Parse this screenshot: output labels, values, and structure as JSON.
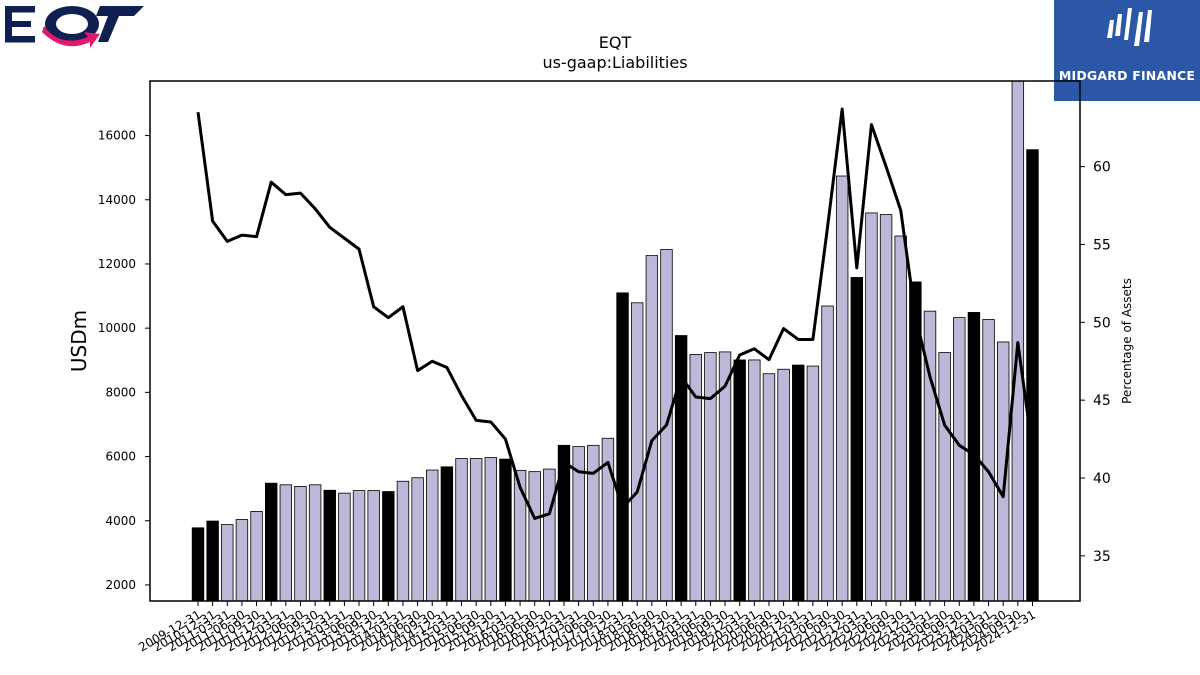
{
  "header": {
    "logo_left": "EQT",
    "logo_right": "MIDGARD FINANCE"
  },
  "colors": {
    "bar_annual": "#000000",
    "bar_quarter": "#bcb8d8",
    "line": "#000000",
    "brand_blue": "#2b57a6",
    "brand_pink": "#e0196d",
    "brand_navy": "#0f1f52"
  },
  "chart_data": {
    "type": "bar",
    "title": "EQT",
    "subtitle": "us-gaap:Liabilities",
    "ylabel": "USDm",
    "ylabel_right": "Percentage of Assets",
    "ylim": [
      1500,
      17700
    ],
    "ylim_right": [
      32.1,
      65.5
    ],
    "yticks": [
      2000,
      4000,
      6000,
      8000,
      10000,
      12000,
      14000,
      16000
    ],
    "yticks_right": [
      35,
      40,
      45,
      50,
      55,
      60
    ],
    "categories": [
      "2009-12-31",
      "2010-12-31",
      "2011-03-31",
      "2011-06-30",
      "2011-09-30",
      "2011-12-31",
      "2012-03-31",
      "2012-06-30",
      "2012-09-30",
      "2012-12-31",
      "2013-03-31",
      "2013-06-30",
      "2013-09-30",
      "2013-12-31",
      "2014-03-31",
      "2014-06-30",
      "2014-09-30",
      "2014-12-31",
      "2015-03-31",
      "2015-06-30",
      "2015-09-30",
      "2015-12-31",
      "2016-03-31",
      "2016-06-30",
      "2016-09-30",
      "2016-12-31",
      "2017-03-31",
      "2017-06-30",
      "2017-09-30",
      "2017-12-31",
      "2018-03-31",
      "2018-06-30",
      "2018-09-30",
      "2018-12-31",
      "2019-03-31",
      "2019-06-30",
      "2019-09-30",
      "2019-12-31",
      "2020-03-31",
      "2020-06-30",
      "2020-09-30",
      "2020-12-31",
      "2021-03-31",
      "2021-06-30",
      "2021-09-30",
      "2021-12-31",
      "2022-03-31",
      "2022-06-30",
      "2022-09-30",
      "2022-12-31",
      "2023-03-31",
      "2023-06-30",
      "2023-09-30",
      "2023-12-31",
      "2024-03-31",
      "2024-06-30",
      "2024-09-30",
      "2024-12-31"
    ],
    "annual": [
      true,
      true,
      false,
      false,
      false,
      true,
      false,
      false,
      false,
      true,
      false,
      false,
      false,
      true,
      false,
      false,
      false,
      true,
      false,
      false,
      false,
      true,
      false,
      false,
      false,
      true,
      false,
      false,
      false,
      true,
      false,
      false,
      false,
      true,
      false,
      false,
      false,
      true,
      false,
      false,
      false,
      true,
      false,
      false,
      false,
      true,
      false,
      false,
      false,
      true,
      false,
      false,
      false,
      true,
      false,
      false,
      false,
      true
    ],
    "series": [
      {
        "name": "Liabilities",
        "kind": "bar",
        "values": [
          3780,
          3990,
          3880,
          4040,
          4290,
          5170,
          5120,
          5070,
          5120,
          4950,
          4860,
          4940,
          4940,
          4910,
          5230,
          5340,
          5580,
          5680,
          5940,
          5940,
          5970,
          5920,
          5570,
          5530,
          5610,
          6350,
          6310,
          6350,
          6570,
          11100,
          10790,
          12260,
          12450,
          9770,
          9180,
          9240,
          9260,
          9010,
          9010,
          8580,
          8720,
          8850,
          8820,
          10690,
          14740,
          11580,
          13590,
          13540,
          12870,
          11440,
          10530,
          9240,
          10330,
          10490,
          10270,
          9570,
          17700,
          15560
        ]
      },
      {
        "name": "Percentage of Assets",
        "kind": "line",
        "axis": "right",
        "values": [
          63.5,
          56.5,
          55.2,
          55.6,
          55.5,
          59.0,
          58.2,
          58.3,
          57.3,
          56.1,
          55.4,
          54.7,
          51.0,
          50.3,
          51.0,
          46.9,
          47.5,
          47.1,
          45.3,
          43.7,
          43.6,
          42.5,
          39.4,
          37.4,
          37.7,
          41.0,
          40.4,
          40.3,
          41.0,
          38.1,
          39.1,
          42.4,
          43.4,
          46.5,
          45.2,
          45.1,
          45.9,
          47.9,
          48.3,
          47.6,
          49.6,
          48.9,
          48.9,
          56.1,
          63.7,
          53.5,
          62.7,
          60.0,
          57.2,
          50.4,
          46.5,
          43.4,
          42.1,
          41.5,
          40.4,
          38.8,
          48.7,
          41.8
        ]
      }
    ]
  }
}
